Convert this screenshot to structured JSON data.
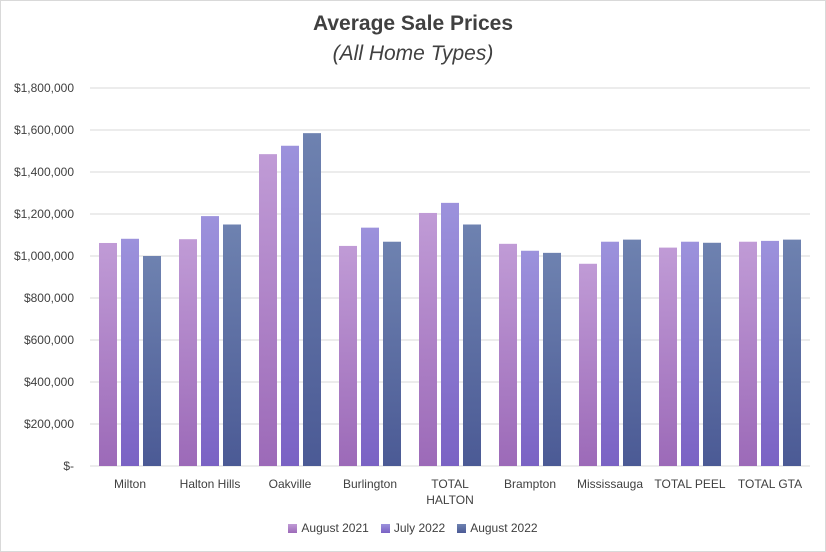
{
  "title": "Average Sale Prices",
  "subtitle": "(All Home Types)",
  "chart_data": {
    "type": "bar",
    "title": "Average Sale Prices",
    "subtitle": "(All Home Types)",
    "categories": [
      "Milton",
      "Halton Hills",
      "Oakville",
      "Burlington",
      "TOTAL HALTON",
      "Brampton",
      "Mississauga",
      "TOTAL PEEL",
      "TOTAL GTA"
    ],
    "category_lines": [
      [
        "Milton"
      ],
      [
        "Halton Hills"
      ],
      [
        "Oakville"
      ],
      [
        "Burlington"
      ],
      [
        "TOTAL",
        "HALTON"
      ],
      [
        "Brampton"
      ],
      [
        "Mississauga"
      ],
      [
        "TOTAL PEEL"
      ],
      [
        "TOTAL GTA"
      ]
    ],
    "series": [
      {
        "name": "August 2021",
        "color_top": "#c09bd6",
        "color_bottom": "#9c6ab8",
        "values": [
          1062000,
          1080000,
          1485000,
          1048000,
          1205000,
          1058000,
          963000,
          1040000,
          1068000
        ]
      },
      {
        "name": "July 2022",
        "color_top": "#9c92dc",
        "color_bottom": "#7a62c4",
        "values": [
          1082000,
          1190000,
          1525000,
          1135000,
          1253000,
          1025000,
          1068000,
          1068000,
          1072000
        ]
      },
      {
        "name": "August 2022",
        "color_top": "#6e82b0",
        "color_bottom": "#4b5a95",
        "values": [
          1000000,
          1150000,
          1585000,
          1068000,
          1150000,
          1015000,
          1078000,
          1063000,
          1078000
        ]
      }
    ],
    "ylim": [
      0,
      1800000
    ],
    "yticks": [
      0,
      200000,
      400000,
      600000,
      800000,
      1000000,
      1200000,
      1400000,
      1600000,
      1800000
    ],
    "ytick_labels": [
      "$-",
      "$200,000",
      "$400,000",
      "$600,000",
      "$800,000",
      "$1,000,000",
      "$1,200,000",
      "$1,400,000",
      "$1,600,000",
      "$1,800,000"
    ],
    "grid": true,
    "legend": "bottom"
  }
}
